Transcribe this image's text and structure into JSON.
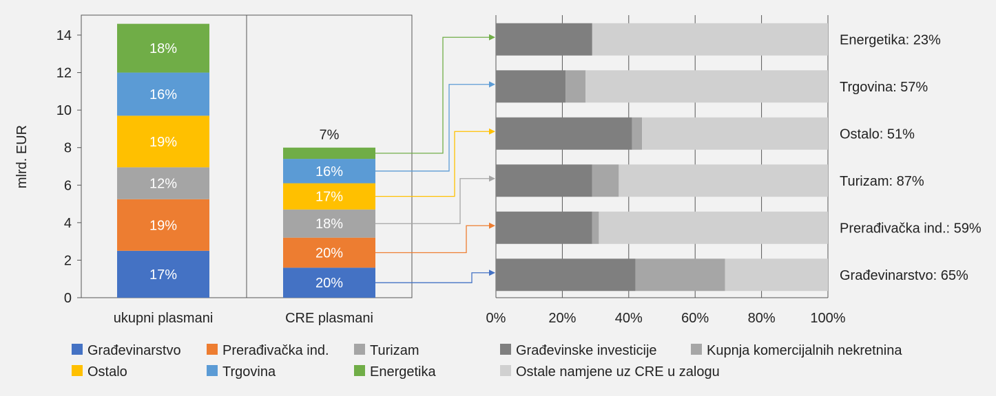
{
  "colors": {
    "gradjevinarstvo": "#4472c4",
    "preradjivacka": "#ed7d31",
    "turizam": "#a5a5a5",
    "ostalo": "#ffc000",
    "trgovina": "#5b9bd5",
    "energetika": "#70ad47",
    "gradjevinske_investicije": "#7f7f7f",
    "kupnja_komercijalnih": "#a6a6a6",
    "ostale_namjene": "#d0d0d0"
  },
  "legend": {
    "left_items": [
      {
        "label": "Građevinarstvo",
        "color_key": "gradjevinarstvo"
      },
      {
        "label": "Prerađivačka ind.",
        "color_key": "preradjivacka"
      },
      {
        "label": "Turizam",
        "color_key": "turizam"
      },
      {
        "label": "Ostalo",
        "color_key": "ostalo"
      },
      {
        "label": "Trgovina",
        "color_key": "trgovina"
      },
      {
        "label": "Energetika",
        "color_key": "energetika"
      }
    ],
    "right_items": [
      {
        "label": "Građevinske investicije",
        "color_key": "gradjevinske_investicije"
      },
      {
        "label": "Kupnja komercijalnih nekretnina",
        "color_key": "kupnja_komercijalnih"
      },
      {
        "label": "Ostale namjene uz CRE u zalogu",
        "color_key": "ostale_namjene"
      }
    ]
  },
  "chart_data": [
    {
      "type": "bar",
      "stacked": true,
      "ylabel": "mlrd. EUR",
      "ylim": [
        0,
        15
      ],
      "yticks": [
        "0",
        "2",
        "4",
        "6",
        "8",
        "10",
        "12",
        "14"
      ],
      "categories": [
        "ukupni plasmani",
        "CRE plasmani"
      ],
      "series": [
        {
          "name": "Građevinarstvo",
          "color_key": "gradjevinarstvo",
          "values": [
            2.5,
            1.6
          ],
          "labels": [
            "17%",
            "20%"
          ]
        },
        {
          "name": "Prerađivačka ind.",
          "color_key": "preradjivacka",
          "values": [
            2.75,
            1.6
          ],
          "labels": [
            "19%",
            "20%"
          ]
        },
        {
          "name": "Turizam",
          "color_key": "turizam",
          "values": [
            1.7,
            1.5
          ],
          "labels": [
            "12%",
            "18%"
          ]
        },
        {
          "name": "Ostalo",
          "color_key": "ostalo",
          "values": [
            2.75,
            1.4
          ],
          "labels": [
            "19%",
            "17%"
          ]
        },
        {
          "name": "Trgovina",
          "color_key": "trgovina",
          "values": [
            2.3,
            1.3
          ],
          "labels": [
            "16%",
            "16%"
          ]
        },
        {
          "name": "Energetika",
          "color_key": "energetika",
          "values": [
            2.6,
            0.6
          ],
          "labels": [
            "18%",
            "7%"
          ]
        }
      ],
      "grid": false
    },
    {
      "type": "bar",
      "orientation": "horizontal",
      "stacked": true,
      "percent": true,
      "xlim": [
        0,
        100
      ],
      "xticks": [
        "0%",
        "20%",
        "40%",
        "60%",
        "80%",
        "100%"
      ],
      "categories": [
        "Energetika: 23%",
        "Trgovina: 57%",
        "Ostalo: 51%",
        "Turizam: 87%",
        "Prerađivačka ind.: 59%",
        "Građevinarstvo: 65%"
      ],
      "series": [
        {
          "name": "Građevinske investicije",
          "color_key": "gradjevinske_investicije",
          "values": [
            29,
            21,
            41,
            29,
            29,
            42
          ]
        },
        {
          "name": "Kupnja komercijalnih nekretnina",
          "color_key": "kupnja_komercijalnih",
          "values": [
            0,
            6,
            3,
            8,
            2,
            27
          ]
        },
        {
          "name": "Ostale namjene uz CRE u zalogu",
          "color_key": "ostale_namjene",
          "values": [
            71,
            73,
            56,
            63,
            69,
            31
          ]
        }
      ],
      "connectors": [
        "Energetika",
        "Trgovina",
        "Ostalo",
        "Turizam",
        "Prerađivačka ind.",
        "Građevinarstvo"
      ],
      "grid": true
    }
  ]
}
